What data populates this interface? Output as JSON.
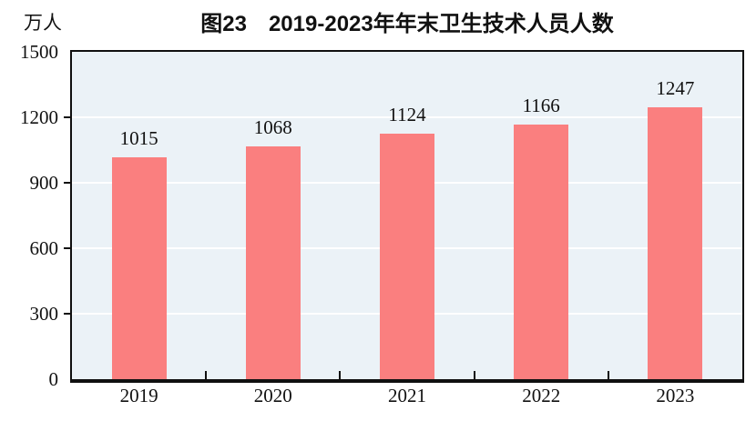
{
  "chart_data": {
    "type": "bar",
    "title": "图23　2019-2023年年末卫生技术人员人数",
    "unit_label": "万人",
    "categories": [
      "2019",
      "2020",
      "2021",
      "2022",
      "2023"
    ],
    "values": [
      1015,
      1068,
      1124,
      1166,
      1247
    ],
    "ylim": [
      0,
      1500
    ],
    "yticks": [
      0,
      300,
      600,
      900,
      1200,
      1500
    ],
    "grid": true,
    "legend_position": "none",
    "colors": {
      "bar": "#FA7F7F",
      "plot_background": "#EBF2F7",
      "gridline": "#FFFFFF",
      "axis": "#101010",
      "text": "#111111"
    }
  }
}
